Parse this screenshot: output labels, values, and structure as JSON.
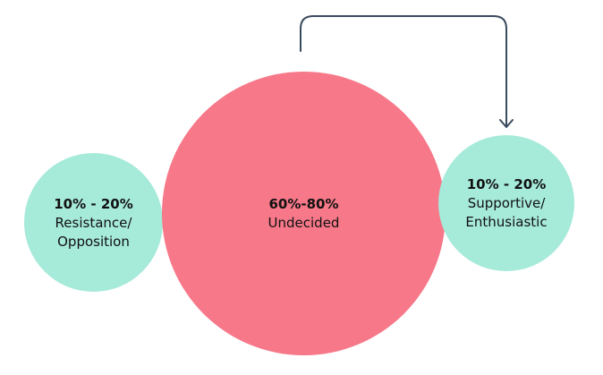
{
  "colors": {
    "side_circle": "#a6eada",
    "center_circle": "#f67889",
    "arrow": "#3a4a5e"
  },
  "left": {
    "percent": "10% - 20%",
    "line1": "Resistance/",
    "line2": "Opposition"
  },
  "center": {
    "percent": "60%-80%",
    "line1": "Undecided"
  },
  "right": {
    "percent": "10% - 20%",
    "line1": "Supportive/",
    "line2": "Enthusiastic"
  }
}
